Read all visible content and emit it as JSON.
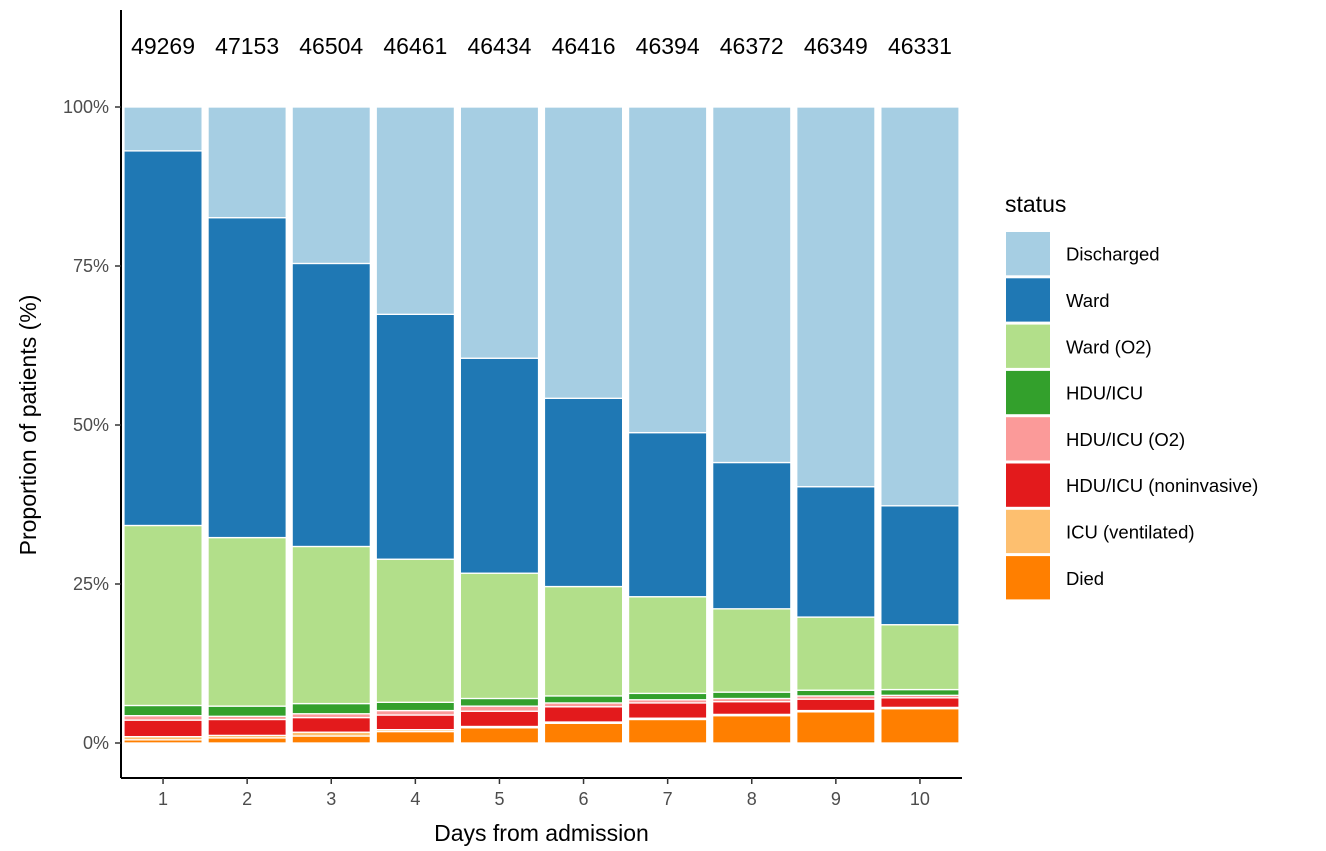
{
  "chart_data": {
    "type": "bar",
    "stacked": true,
    "normalized": true,
    "categories": [
      "1",
      "2",
      "3",
      "4",
      "5",
      "6",
      "7",
      "8",
      "9",
      "10"
    ],
    "top_labels": [
      "49269",
      "47153",
      "46504",
      "46461",
      "46434",
      "46416",
      "46394",
      "46372",
      "46349",
      "46331"
    ],
    "xlabel": "Days from admission",
    "ylabel": "Proportion of patients (%)",
    "ylim": [
      0,
      1
    ],
    "yticks": [
      0,
      0.25,
      0.5,
      0.75,
      1
    ],
    "ytick_labels": [
      "0%",
      "25%",
      "50%",
      "75%",
      "100%"
    ],
    "grid": false,
    "legend": {
      "title": "status",
      "position": "right"
    },
    "series": [
      {
        "name": "Died",
        "color": "#FF7F00",
        "values": [
          0.005,
          0.008,
          0.011,
          0.018,
          0.024,
          0.031,
          0.037,
          0.043,
          0.049,
          0.054
        ]
      },
      {
        "name": "ICU (ventilated)",
        "color": "#FDBF6F",
        "values": [
          0.005,
          0.004,
          0.006,
          0.003,
          0.002,
          0.002,
          0.002,
          0.002,
          0.002,
          0.002
        ]
      },
      {
        "name": "HDU/ICU (noninvasive)",
        "color": "#E31A1C",
        "values": [
          0.026,
          0.025,
          0.023,
          0.023,
          0.024,
          0.024,
          0.024,
          0.02,
          0.018,
          0.015
        ]
      },
      {
        "name": "HDU/ICU (O2)",
        "color": "#FB9A99",
        "values": [
          0.007,
          0.005,
          0.006,
          0.007,
          0.008,
          0.006,
          0.005,
          0.005,
          0.005,
          0.004
        ]
      },
      {
        "name": "HDU/ICU",
        "color": "#33A02C",
        "values": [
          0.016,
          0.016,
          0.016,
          0.013,
          0.012,
          0.011,
          0.01,
          0.01,
          0.009,
          0.009
        ]
      },
      {
        "name": "Ward (O2)",
        "color": "#B2DF8A",
        "values": [
          0.283,
          0.265,
          0.247,
          0.225,
          0.197,
          0.172,
          0.152,
          0.131,
          0.115,
          0.102
        ]
      },
      {
        "name": "Ward",
        "color": "#1F78B4",
        "values": [
          0.589,
          0.503,
          0.445,
          0.385,
          0.338,
          0.296,
          0.258,
          0.23,
          0.205,
          0.187
        ]
      },
      {
        "name": "Discharged",
        "color": "#A6CEE3",
        "values": [
          0.069,
          0.174,
          0.246,
          0.326,
          0.395,
          0.458,
          0.512,
          0.559,
          0.597,
          0.627
        ]
      }
    ]
  }
}
